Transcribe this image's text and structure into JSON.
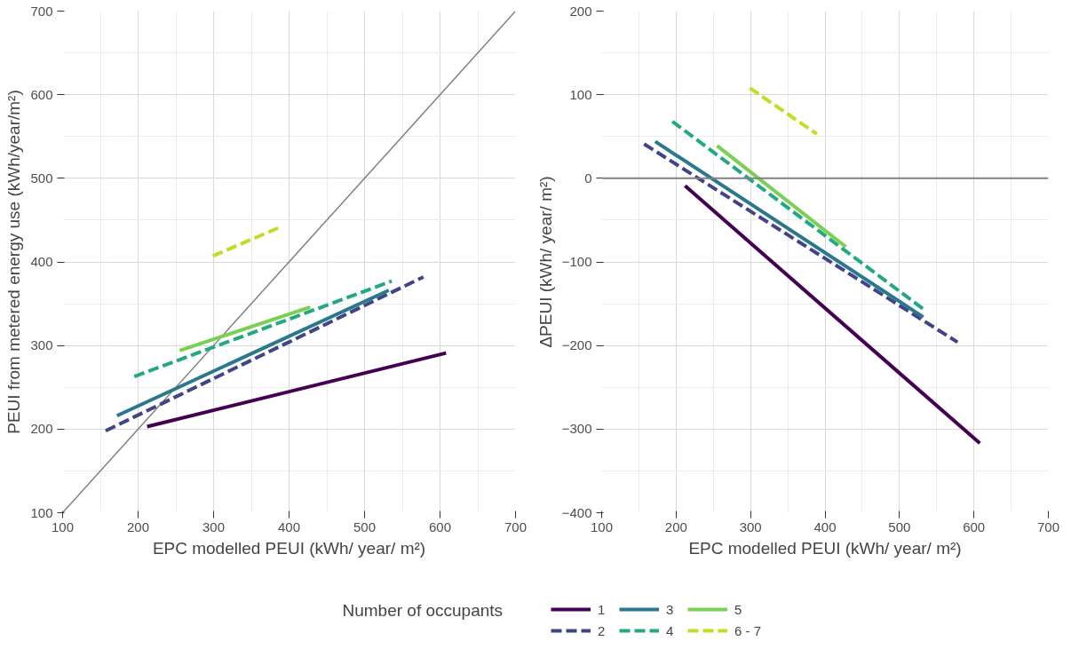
{
  "chart_data": [
    {
      "type": "line",
      "xlabel": "EPC modelled PEUI (kWh/ year/ m²)",
      "ylabel": "PEUI from metered energy use (kWh/year/m²)",
      "xlim": [
        100,
        700
      ],
      "ylim": [
        100,
        700
      ],
      "xticks": [
        100,
        200,
        300,
        400,
        500,
        600,
        700
      ],
      "yticks": [
        100,
        200,
        300,
        400,
        500,
        600,
        700
      ],
      "grid": true,
      "legend": "bottom",
      "legend_title": "Number of occupants",
      "series": [
        {
          "x": [
            100,
            700
          ],
          "values": [
            100,
            700
          ],
          "color": "#808080",
          "line_style": "solid"
        },
        {
          "name": "1",
          "x": [
            212,
            608
          ],
          "values": [
            203,
            291
          ],
          "color": "#440154",
          "line_style": "solid"
        },
        {
          "name": "2",
          "x": [
            157,
            578
          ],
          "values": [
            198,
            382
          ],
          "color": "#414487",
          "line_style": "dashed"
        },
        {
          "name": "3",
          "x": [
            172,
            532
          ],
          "values": [
            216,
            366
          ],
          "color": "#2a788e",
          "line_style": "solid"
        },
        {
          "name": "4",
          "x": [
            195,
            536
          ],
          "values": [
            263,
            377
          ],
          "color": "#22a884",
          "line_style": "dashed"
        },
        {
          "name": "5",
          "x": [
            255,
            428
          ],
          "values": [
            294,
            346
          ],
          "color": "#7ad151",
          "line_style": "solid"
        },
        {
          "name": "6 - 7",
          "x": [
            299,
            389
          ],
          "values": [
            407,
            442
          ],
          "color": "#bddf26",
          "line_style": "dashed"
        }
      ]
    },
    {
      "type": "line",
      "xlabel": "EPC modelled PEUI (kWh/ year/ m²)",
      "ylabel": "ΔPEUI (kWh/ year/ m²)",
      "xlim": [
        100,
        700
      ],
      "ylim": [
        -400,
        200
      ],
      "xticks": [
        100,
        200,
        300,
        400,
        500,
        600,
        700
      ],
      "yticks": [
        -400,
        -300,
        -200,
        -100,
        0,
        100,
        200
      ],
      "grid": true,
      "ref_lines": [
        {
          "axis": "y",
          "value": 0,
          "color": "#808080"
        }
      ],
      "series": [
        {
          "name": "1",
          "x": [
            212,
            608
          ],
          "values": [
            -9,
            -317
          ],
          "color": "#440154",
          "line_style": "solid"
        },
        {
          "name": "2",
          "x": [
            157,
            578
          ],
          "values": [
            41,
            -196
          ],
          "color": "#414487",
          "line_style": "dashed"
        },
        {
          "name": "3",
          "x": [
            172,
            532
          ],
          "values": [
            44,
            -166
          ],
          "color": "#2a788e",
          "line_style": "solid"
        },
        {
          "name": "4",
          "x": [
            195,
            536
          ],
          "values": [
            68,
            -159
          ],
          "color": "#22a884",
          "line_style": "dashed"
        },
        {
          "name": "5",
          "x": [
            255,
            428
          ],
          "values": [
            39,
            -82
          ],
          "color": "#7ad151",
          "line_style": "solid"
        },
        {
          "name": "6 - 7",
          "x": [
            299,
            389
          ],
          "values": [
            108,
            53
          ],
          "color": "#bddf26",
          "line_style": "dashed"
        }
      ]
    }
  ]
}
